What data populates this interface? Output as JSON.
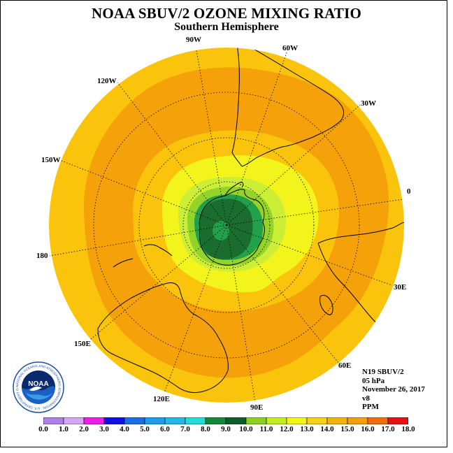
{
  "header": {
    "title": "NOAA SBUV/2 OZONE MIXING RATIO",
    "subtitle": "Southern Hemisphere"
  },
  "longitude_labels": {
    "lon_90w": "90W",
    "lon_60w": "60W",
    "lon_30w": "30W",
    "lon_120w": "120W",
    "lon_150w": "150W",
    "lon_0": "0",
    "lon_180": "180",
    "lon_30e": "30E",
    "lon_60e": "60E",
    "lon_90e": "90E",
    "lon_120e": "120E",
    "lon_150e": "150E"
  },
  "info": {
    "satellite": "N19 SBUV/2",
    "level": "05 hPa",
    "date": "November 26, 2017",
    "version": "v8",
    "units": "PPM"
  },
  "colorbar": {
    "labels": [
      "0.0",
      "1.0",
      "2.0",
      "3.0",
      "4.0",
      "5.0",
      "6.0",
      "7.0",
      "8.0",
      "9.0",
      "10.0",
      "11.0",
      "12.0",
      "13.0",
      "14.0",
      "15.0",
      "16.0",
      "17.0",
      "18.0"
    ],
    "colors": [
      "#b07fe8",
      "#d6a7f2",
      "#ee1ee8",
      "#1010e6",
      "#1a6ee6",
      "#1e9bea",
      "#22b8ea",
      "#22ddd6",
      "#138a3a",
      "#0b5e2b",
      "#8cd11e",
      "#c4ee1e",
      "#f4f512",
      "#f8d015",
      "#f5b308",
      "#f59e08",
      "#f26d0e",
      "#e81010",
      "#7a5236"
    ]
  },
  "logo": {
    "text": "NOAA",
    "ring_text": "NATIONAL OCEANIC AND ATMOSPHERIC ADMINISTRATION · U.S. DEPARTMENT OF COMMERCE"
  },
  "map_data": {
    "projection": "south polar stereographic",
    "contour_colors": {
      "c13_14": "#fbc40c",
      "c14_15": "#f5a10a",
      "c12_13": "#f3f41c",
      "c11_12": "#cdee36",
      "c10_11": "#94d32a",
      "c9_10": "#1a6d2f",
      "c8_9": "#22a04a"
    },
    "graticule": "dotted",
    "coastline_color": "#000000"
  }
}
